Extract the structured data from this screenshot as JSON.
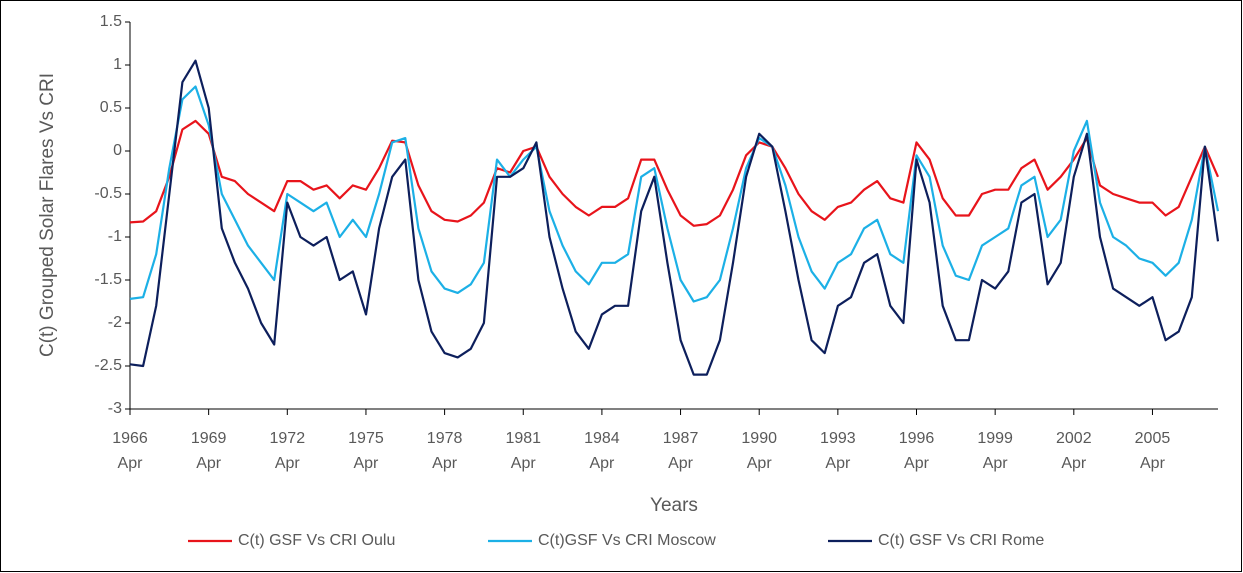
{
  "chart_data": {
    "type": "line",
    "y_label": "C(t) Grouped Solar Flares Vs CRI",
    "x_label": "Years",
    "x": [
      "1966-04",
      "1966-10",
      "1967-04",
      "1967-10",
      "1968-04",
      "1968-10",
      "1969-04",
      "1969-10",
      "1970-04",
      "1970-10",
      "1971-04",
      "1971-10",
      "1972-04",
      "1972-10",
      "1973-04",
      "1973-10",
      "1974-04",
      "1974-10",
      "1975-04",
      "1975-10",
      "1976-04",
      "1976-10",
      "1977-04",
      "1977-10",
      "1978-04",
      "1978-10",
      "1979-04",
      "1979-10",
      "1980-04",
      "1980-10",
      "1981-04",
      "1981-10",
      "1982-04",
      "1982-10",
      "1983-04",
      "1983-10",
      "1984-04",
      "1984-10",
      "1985-04",
      "1985-10",
      "1986-04",
      "1986-10",
      "1987-04",
      "1987-10",
      "1988-04",
      "1988-10",
      "1989-04",
      "1989-10",
      "1990-04",
      "1990-10",
      "1991-04",
      "1991-10",
      "1992-04",
      "1992-10",
      "1993-04",
      "1993-10",
      "1994-04",
      "1994-10",
      "1995-04",
      "1995-10",
      "1996-04",
      "1996-10",
      "1997-04",
      "1997-10",
      "1998-04",
      "1998-10",
      "1999-04",
      "1999-10",
      "2000-04",
      "2000-10",
      "2001-04",
      "2001-10",
      "2002-04",
      "2002-10",
      "2003-04",
      "2003-10",
      "2004-04",
      "2004-10",
      "2005-04",
      "2005-10",
      "2006-04",
      "2006-10",
      "2007-04",
      "2007-10"
    ],
    "series": [
      {
        "name": "C(t) GSF Vs CRI Oulu",
        "color": "#e8141b",
        "values": [
          -0.83,
          -0.82,
          -0.7,
          -0.3,
          0.25,
          0.35,
          0.2,
          -0.3,
          -0.35,
          -0.5,
          -0.6,
          -0.7,
          -0.35,
          -0.35,
          -0.45,
          -0.4,
          -0.55,
          -0.4,
          -0.45,
          -0.2,
          0.12,
          0.1,
          -0.4,
          -0.7,
          -0.8,
          -0.82,
          -0.75,
          -0.6,
          -0.2,
          -0.25,
          0.0,
          0.05,
          -0.3,
          -0.5,
          -0.65,
          -0.75,
          -0.65,
          -0.65,
          -0.55,
          -0.1,
          -0.1,
          -0.45,
          -0.75,
          -0.87,
          -0.85,
          -0.75,
          -0.45,
          -0.05,
          0.1,
          0.05,
          -0.2,
          -0.5,
          -0.7,
          -0.8,
          -0.65,
          -0.6,
          -0.45,
          -0.35,
          -0.55,
          -0.6,
          0.1,
          -0.1,
          -0.55,
          -0.75,
          -0.75,
          -0.5,
          -0.45,
          -0.45,
          -0.2,
          -0.1,
          -0.45,
          -0.3,
          -0.1,
          0.15,
          -0.4,
          -0.5,
          -0.55,
          -0.6,
          -0.6,
          -0.75,
          -0.65,
          -0.3,
          0.05,
          -0.3
        ]
      },
      {
        "name": "C(t)GSF Vs CRI Moscow",
        "color": "#1cb0e6",
        "values": [
          -1.72,
          -1.7,
          -1.2,
          -0.2,
          0.6,
          0.75,
          0.3,
          -0.5,
          -0.8,
          -1.1,
          -1.3,
          -1.5,
          -0.5,
          -0.6,
          -0.7,
          -0.6,
          -1.0,
          -0.8,
          -1.0,
          -0.5,
          0.1,
          0.15,
          -0.9,
          -1.4,
          -1.6,
          -1.65,
          -1.55,
          -1.3,
          -0.1,
          -0.3,
          -0.1,
          0.05,
          -0.7,
          -1.1,
          -1.4,
          -1.55,
          -1.3,
          -1.3,
          -1.2,
          -0.3,
          -0.2,
          -0.9,
          -1.5,
          -1.75,
          -1.7,
          -1.5,
          -0.9,
          -0.2,
          0.15,
          0.05,
          -0.4,
          -1.0,
          -1.4,
          -1.6,
          -1.3,
          -1.2,
          -0.9,
          -0.8,
          -1.2,
          -1.3,
          -0.05,
          -0.3,
          -1.1,
          -1.45,
          -1.5,
          -1.1,
          -1.0,
          -0.9,
          -0.4,
          -0.3,
          -1.0,
          -0.8,
          0.0,
          0.35,
          -0.6,
          -1.0,
          -1.1,
          -1.25,
          -1.3,
          -1.45,
          -1.3,
          -0.8,
          0.05,
          -0.7
        ]
      },
      {
        "name": "C(t) GSF Vs CRI Rome",
        "color": "#0d1f5c",
        "values": [
          -2.48,
          -2.5,
          -1.8,
          -0.5,
          0.8,
          1.05,
          0.5,
          -0.9,
          -1.3,
          -1.6,
          -2.0,
          -2.25,
          -0.6,
          -1.0,
          -1.1,
          -1.0,
          -1.5,
          -1.4,
          -1.9,
          -0.9,
          -0.3,
          -0.1,
          -1.5,
          -2.1,
          -2.35,
          -2.4,
          -2.3,
          -2.0,
          -0.3,
          -0.3,
          -0.2,
          0.1,
          -1.0,
          -1.6,
          -2.1,
          -2.3,
          -1.9,
          -1.8,
          -1.8,
          -0.7,
          -0.3,
          -1.3,
          -2.2,
          -2.6,
          -2.6,
          -2.2,
          -1.3,
          -0.3,
          0.2,
          0.05,
          -0.7,
          -1.5,
          -2.2,
          -2.35,
          -1.8,
          -1.7,
          -1.3,
          -1.2,
          -1.8,
          -2.0,
          -0.1,
          -0.6,
          -1.8,
          -2.2,
          -2.2,
          -1.5,
          -1.6,
          -1.4,
          -0.6,
          -0.5,
          -1.55,
          -1.3,
          -0.3,
          0.2,
          -1.0,
          -1.6,
          -1.7,
          -1.8,
          -1.7,
          -2.2,
          -2.1,
          -1.7,
          0.05,
          -1.05
        ]
      }
    ],
    "xlim": [
      "1966-04",
      "2007-10"
    ],
    "xticks": [
      {
        "value": "1966-04",
        "label": "1966 Apr"
      },
      {
        "value": "1969-04",
        "label": "1969 Apr"
      },
      {
        "value": "1972-04",
        "label": "1972 Apr"
      },
      {
        "value": "1975-04",
        "label": "1975 Apr"
      },
      {
        "value": "1978-04",
        "label": "1978 Apr"
      },
      {
        "value": "1981-04",
        "label": "1981 Apr"
      },
      {
        "value": "1984-04",
        "label": "1984 Apr"
      },
      {
        "value": "1987-04",
        "label": "1987 Apr"
      },
      {
        "value": "1990-04",
        "label": "1990 Apr"
      },
      {
        "value": "1993-04",
        "label": "1993 Apr"
      },
      {
        "value": "1996-04",
        "label": "1996 Apr"
      },
      {
        "value": "1999-04",
        "label": "1999 Apr"
      },
      {
        "value": "2002-04",
        "label": "2002 Apr"
      },
      {
        "value": "2005-04",
        "label": "2005 Apr"
      }
    ],
    "ylim": [
      -3,
      1.5
    ],
    "yticks": [
      -3,
      -2.5,
      -2,
      -1.5,
      -1,
      -0.5,
      0,
      0.5,
      1,
      1.5
    ],
    "grid": false,
    "legend": "bottom"
  }
}
